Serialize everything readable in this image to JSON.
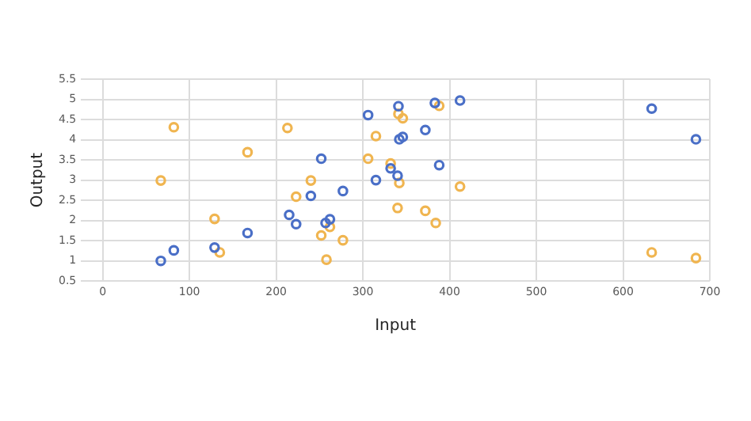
{
  "chart_data": {
    "type": "scatter",
    "xlabel": "Input",
    "ylabel": "Output",
    "xlim": [
      -25,
      700
    ],
    "xticks": [
      0,
      100,
      200,
      300,
      400,
      500,
      600,
      700
    ],
    "ylim": [
      0.5,
      5.5
    ],
    "yticks": [
      0.5,
      1,
      1.5,
      2,
      2.5,
      3,
      3.5,
      4,
      4.5,
      5,
      5.5
    ],
    "grid": true,
    "legend": false,
    "marker": "circle",
    "series": [
      {
        "color": "#4a6fc7",
        "x": [
          67,
          82,
          129,
          167,
          215,
          223,
          240,
          252,
          257,
          262,
          277,
          306,
          315,
          332,
          340,
          341,
          342,
          346,
          372,
          383,
          388,
          412,
          633,
          684
        ],
        "values": [
          1.0,
          1.26,
          1.33,
          1.69,
          2.14,
          1.91,
          2.61,
          3.53,
          1.94,
          2.03,
          2.73,
          4.61,
          3.0,
          3.29,
          3.11,
          4.83,
          4.01,
          4.07,
          4.24,
          4.91,
          3.37,
          4.97,
          4.77,
          4.01
        ]
      },
      {
        "color": "#f0b550",
        "x": [
          67,
          82,
          129,
          135,
          167,
          213,
          223,
          240,
          252,
          258,
          262,
          277,
          306,
          315,
          332,
          340,
          341,
          342,
          346,
          372,
          384,
          388,
          412,
          633,
          684
        ],
        "values": [
          2.99,
          4.31,
          2.04,
          1.21,
          3.69,
          4.29,
          2.59,
          2.99,
          1.63,
          1.03,
          1.84,
          1.51,
          3.53,
          4.09,
          3.41,
          2.31,
          4.64,
          2.93,
          4.53,
          2.24,
          1.94,
          4.84,
          2.84,
          1.21,
          1.07
        ]
      }
    ]
  }
}
